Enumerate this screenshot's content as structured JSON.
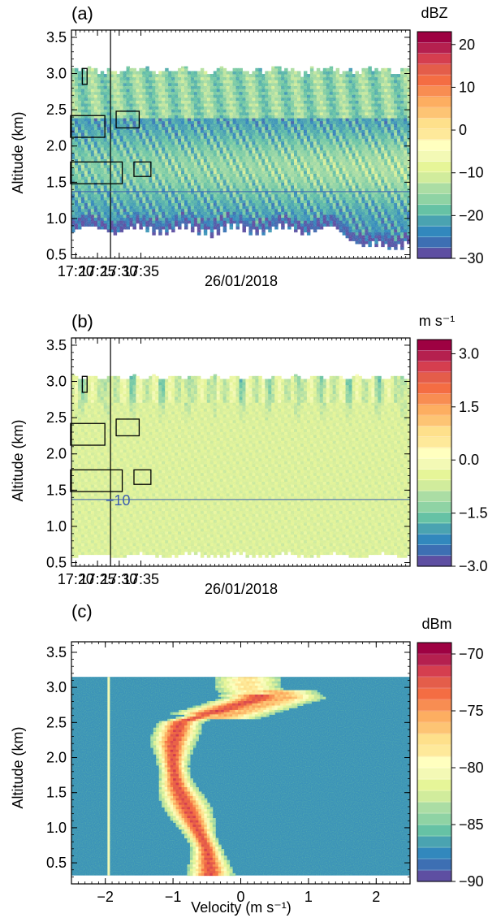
{
  "chart_data": [
    {
      "panel_label": "(a)",
      "type": "heatmap",
      "ylabel": "Altitude (km)",
      "xlabel": "26/01/2018",
      "ylim": [
        0.45,
        3.6
      ],
      "y_ticks": [
        0.5,
        1.0,
        1.5,
        2.0,
        2.5,
        3.0,
        3.5
      ],
      "y_tick_labels": [
        "0.5",
        "1.0",
        "1.5",
        "2.0",
        "2.5",
        "3.0",
        "3.5"
      ],
      "xlim_min": [
        1159,
        1237
      ],
      "x_ticks_min": [
        1160,
        1165,
        1170,
        1175
      ],
      "x_tick_labels": [
        "17:20",
        "17:25",
        "17:30",
        "17:35"
      ],
      "colorbar": {
        "unit": "dBZ",
        "ticks": [
          20,
          10,
          0,
          -10,
          -20,
          -30
        ],
        "tick_labels": [
          "20",
          "10",
          "0",
          "−10",
          "−20",
          "−30"
        ],
        "range": [
          -30,
          23
        ]
      },
      "vertical_marker_min": 1168,
      "horizontal_marker_km": 1.37,
      "boxes": [
        {
          "x": [
            1161.5,
            1162.6
          ],
          "y": [
            2.85,
            3.07
          ]
        },
        {
          "x": [
            1158.8,
            1166.7
          ],
          "y": [
            2.12,
            2.42
          ]
        },
        {
          "x": [
            1158.8,
            1170.7
          ],
          "y": [
            1.48,
            1.78
          ]
        },
        {
          "x": [
            1169.3,
            1174.6
          ],
          "y": [
            2.25,
            2.48
          ]
        },
        {
          "x": [
            1173.4,
            1177.3
          ],
          "y": [
            1.58,
            1.78
          ]
        }
      ],
      "echo_top_km": 3.1,
      "echo_base_km": 0.85
    },
    {
      "panel_label": "(b)",
      "type": "heatmap",
      "ylabel": "Altitude (km)",
      "xlabel": "26/01/2018",
      "ylim": [
        0.45,
        3.6
      ],
      "y_ticks": [
        0.5,
        1.0,
        1.5,
        2.0,
        2.5,
        3.0,
        3.5
      ],
      "y_tick_labels": [
        "0.5",
        "1.0",
        "1.5",
        "2.0",
        "2.5",
        "3.0",
        "3.5"
      ],
      "xlim_min": [
        1159,
        1237
      ],
      "x_ticks_min": [
        1160,
        1165,
        1170,
        1175
      ],
      "x_tick_labels": [
        "17:20",
        "17:25",
        "17:30",
        "17:35"
      ],
      "colorbar": {
        "unit": "m s⁻¹",
        "ticks": [
          3.0,
          1.5,
          0.0,
          -1.5,
          -3.0
        ],
        "tick_labels": [
          "3.0",
          "1.5",
          "0.0",
          "−1.5",
          "−3.0"
        ],
        "range": [
          -3.0,
          3.4
        ]
      },
      "vertical_marker_min": 1168,
      "horizontal_marker_km": 1.37,
      "horizontal_marker_label": "−10",
      "boxes": [
        {
          "x": [
            1161.5,
            1162.6
          ],
          "y": [
            2.85,
            3.07
          ]
        },
        {
          "x": [
            1158.8,
            1166.7
          ],
          "y": [
            2.12,
            2.42
          ]
        },
        {
          "x": [
            1158.8,
            1170.7
          ],
          "y": [
            1.48,
            1.78
          ]
        },
        {
          "x": [
            1169.3,
            1174.6
          ],
          "y": [
            2.25,
            2.48
          ]
        },
        {
          "x": [
            1173.4,
            1177.3
          ],
          "y": [
            1.58,
            1.78
          ]
        }
      ],
      "echo_top_km": 3.1,
      "echo_base_km": 0.6
    },
    {
      "panel_label": "(c)",
      "type": "heatmap",
      "ylabel": "Altitude (km)",
      "xlabel": "Velocity (m s⁻¹)",
      "ylim": [
        0.2,
        3.65
      ],
      "xlim": [
        -2.5,
        2.5
      ],
      "y_ticks": [
        0.5,
        1.0,
        1.5,
        2.0,
        2.5,
        3.0,
        3.5
      ],
      "y_tick_labels": [
        "0.5",
        "1.0",
        "1.5",
        "2.0",
        "2.5",
        "3.0",
        "3.5"
      ],
      "x_ticks": [
        -2,
        -1,
        0,
        1,
        2
      ],
      "x_tick_labels": [
        "−2",
        "−1",
        "0",
        "1",
        "2"
      ],
      "colorbar": {
        "unit": "dBm",
        "ticks": [
          -70,
          -75,
          -80,
          -85,
          -90
        ],
        "tick_labels": [
          "−70",
          "−75",
          "−80",
          "−85",
          "−90"
        ],
        "range": [
          -90,
          -69
        ]
      },
      "data_range_km": [
        0.32,
        3.15
      ],
      "clutter_line_velocity": -1.95,
      "spectrum_peak": [
        {
          "alt": 0.4,
          "v": -0.45
        },
        {
          "alt": 0.7,
          "v": -0.5
        },
        {
          "alt": 1.0,
          "v": -0.65
        },
        {
          "alt": 1.3,
          "v": -0.8
        },
        {
          "alt": 1.6,
          "v": -0.95
        },
        {
          "alt": 1.9,
          "v": -1.0
        },
        {
          "alt": 2.2,
          "v": -1.0
        },
        {
          "alt": 2.5,
          "v": -0.9
        },
        {
          "alt": 2.7,
          "v": -0.2
        },
        {
          "alt": 2.85,
          "v": 0.3
        },
        {
          "alt": 3.0,
          "v": 0.1
        }
      ]
    }
  ]
}
